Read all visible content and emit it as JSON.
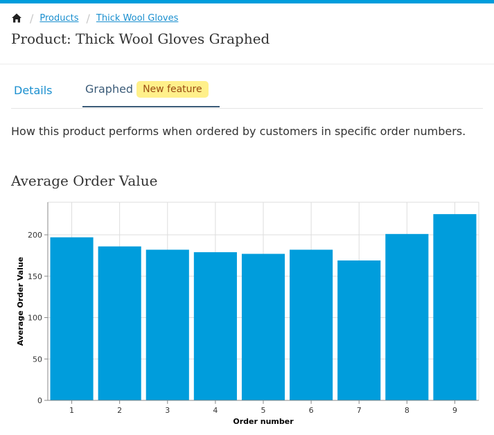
{
  "colors": {
    "accent": "#009ddc",
    "bar": "#009ddc",
    "link": "#1a8fcf",
    "badge_bg": "#fff08a",
    "badge_text": "#9a4b12"
  },
  "breadcrumb": {
    "home_icon": "home-icon",
    "items": [
      "Products",
      "Thick Wool Gloves"
    ]
  },
  "header": {
    "title": "Product: Thick Wool Gloves Graphed"
  },
  "tabs": [
    {
      "label": "Details",
      "active": false
    },
    {
      "label": "Graphed",
      "active": true,
      "badge": "New feature"
    }
  ],
  "description": "How this product performs when ordered by customers in specific order numbers.",
  "chart_title": "Average Order Value",
  "chart_data": {
    "type": "bar",
    "title": "Average Order Value",
    "xlabel": "Order number",
    "ylabel": "Average Order Value",
    "categories": [
      "1",
      "2",
      "3",
      "4",
      "5",
      "6",
      "7",
      "8",
      "9"
    ],
    "values": [
      197,
      186,
      182,
      179,
      177,
      182,
      169,
      201,
      225
    ],
    "ylim": [
      0,
      240
    ],
    "yticks": [
      0,
      50,
      100,
      150,
      200
    ],
    "grid": true,
    "legend": false
  }
}
